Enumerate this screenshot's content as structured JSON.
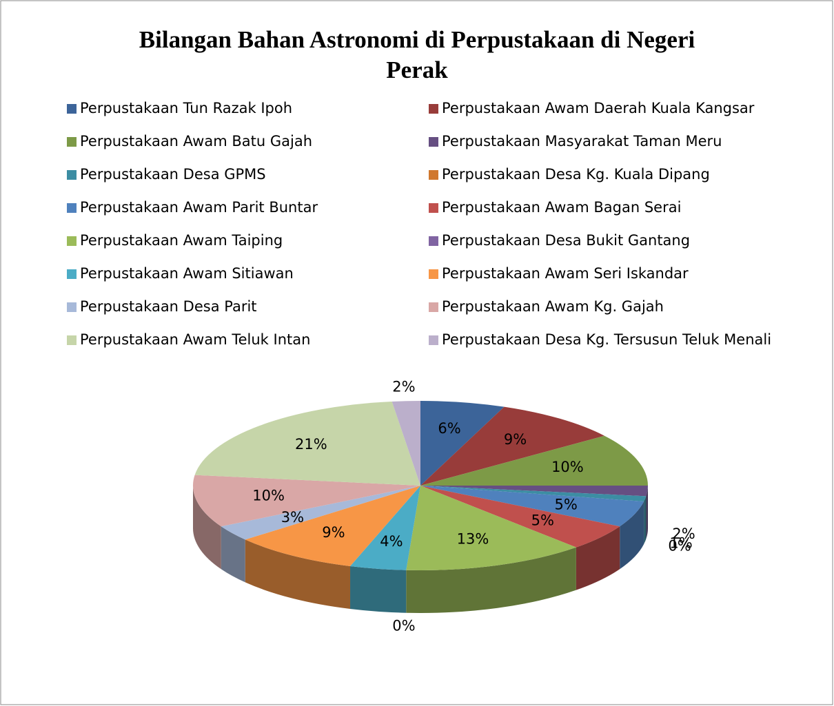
{
  "chart_data": {
    "type": "pie",
    "title": "Bilangan Bahan Astronomi di Perpustakaan di Negeri Perak",
    "categories": [
      "Perpustakaan Tun Razak Ipoh",
      "Perpustakaan Awam Daerah Kuala Kangsar",
      "Perpustakaan Awam Batu Gajah",
      "Perpustakaan Masyarakat Taman Meru",
      "Perpustakaan Desa GPMS",
      "Perpustakaan Desa Kg. Kuala Dipang",
      "Perpustakaan Awam Parit Buntar",
      "Perpustakaan Awam Bagan Serai",
      "Perpustakaan Awam Taiping",
      "Perpustakaan Desa Bukit Gantang",
      "Perpustakaan Awam Sitiawan",
      "Perpustakaan Awam Seri Iskandar",
      "Perpustakaan Desa Parit",
      "Perpustakaan Awam Kg. Gajah",
      "Perpustakaan Awam Teluk Intan",
      "Perpustakaan Desa Kg. Tersusun Teluk Menali"
    ],
    "values": [
      6,
      9,
      10,
      2,
      1,
      0,
      5,
      5,
      13,
      0,
      4,
      9,
      3,
      10,
      21,
      2
    ],
    "value_labels": [
      "6%",
      "9%",
      "10%",
      "2%",
      "1%",
      "0%",
      "5%",
      "5%",
      "13%",
      "0%",
      "4%",
      "9%",
      "3%",
      "10%",
      "21%",
      "2%"
    ],
    "colors": [
      "#3C6499",
      "#983C3A",
      "#7D9A47",
      "#664F82",
      "#3C8DA3",
      "#D0782E",
      "#4F81BD",
      "#C0504D",
      "#9BBB59",
      "#8064A2",
      "#4BACC6",
      "#F79646",
      "#A7B9D9",
      "#D9A7A6",
      "#C6D5A9",
      "#BBAFCB"
    ],
    "legend": "top"
  }
}
